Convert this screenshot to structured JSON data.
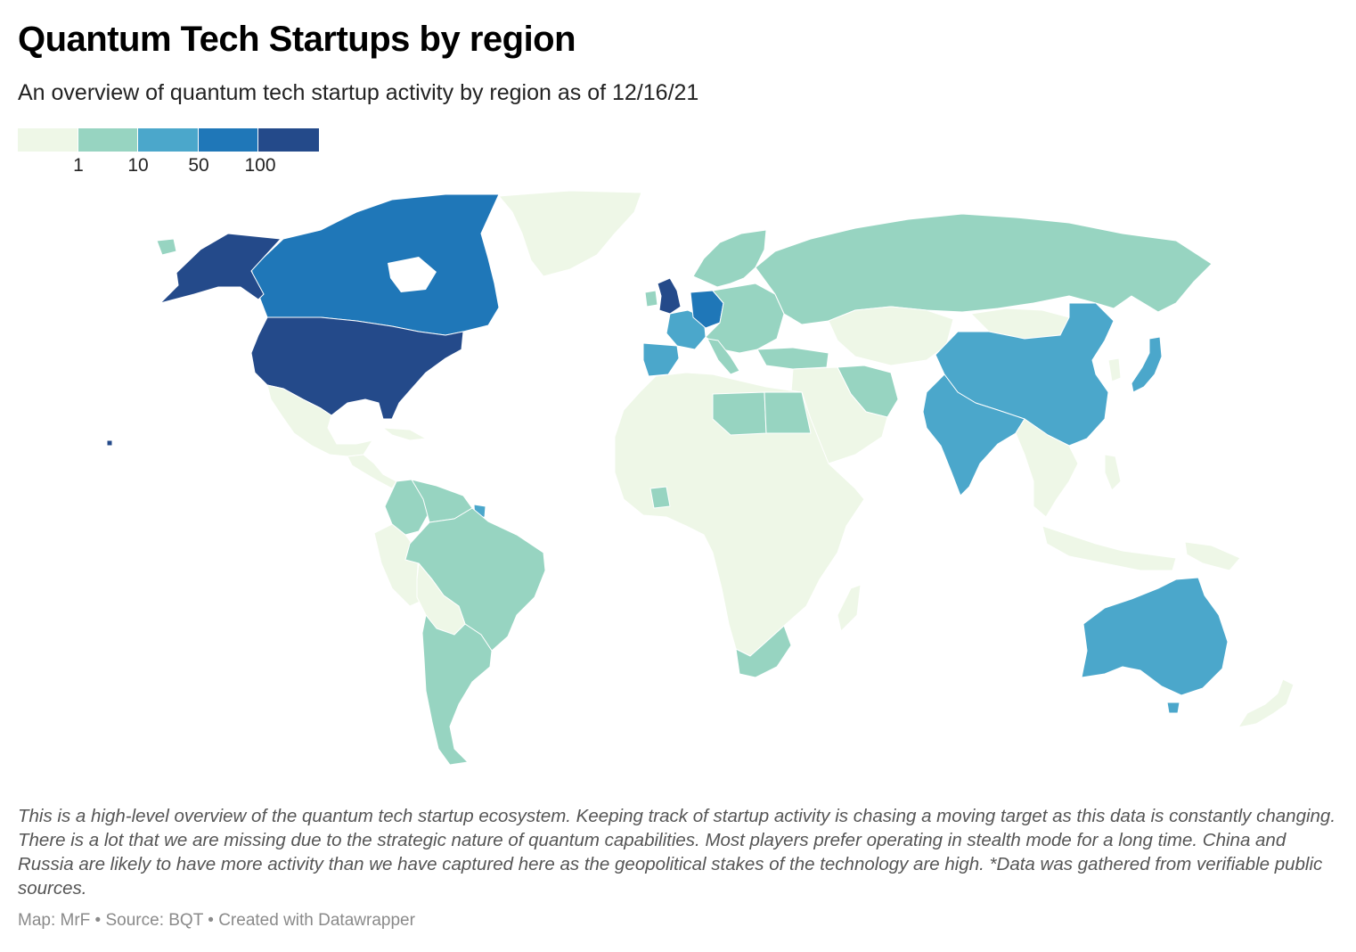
{
  "header": {
    "title": "Quantum Tech Startups by region",
    "subtitle": "An overview of quantum tech startup activity by region as of 12/16/21"
  },
  "legend": {
    "colors": [
      "#eef7e7",
      "#97d4c1",
      "#4ba7cb",
      "#1f77b8",
      "#244a8a"
    ],
    "ticks": [
      "1",
      "10",
      "50",
      "100"
    ]
  },
  "map": {
    "ocean_color": "#ffffff",
    "border_color": "#ffffff",
    "regions": [
      {
        "region": "United States",
        "bin": 4
      },
      {
        "region": "Alaska",
        "bin": 4
      },
      {
        "region": "United Kingdom",
        "bin": 4
      },
      {
        "region": "Canada",
        "bin": 3
      },
      {
        "region": "Germany",
        "bin": 3
      },
      {
        "region": "China",
        "bin": 2
      },
      {
        "region": "India",
        "bin": 2
      },
      {
        "region": "Japan",
        "bin": 2
      },
      {
        "region": "Australia",
        "bin": 2
      },
      {
        "region": "Spain",
        "bin": 2
      },
      {
        "region": "France",
        "bin": 2
      },
      {
        "region": "Russia",
        "bin": 1
      },
      {
        "region": "Brazil",
        "bin": 1
      },
      {
        "region": "Argentina",
        "bin": 1
      },
      {
        "region": "South Africa",
        "bin": 1
      },
      {
        "region": "Scandinavia",
        "bin": 1
      },
      {
        "region": "Iran",
        "bin": 1
      },
      {
        "region": "Egypt",
        "bin": 1
      },
      {
        "region": "Libya",
        "bin": 1
      },
      {
        "region": "Turkey",
        "bin": 1
      },
      {
        "region": "Colombia",
        "bin": 1
      },
      {
        "region": "Venezuela",
        "bin": 1
      },
      {
        "region": "Central Europe",
        "bin": 1
      },
      {
        "region": "Ivory Coast",
        "bin": 1
      },
      {
        "region": "Greenland",
        "bin": 0
      },
      {
        "region": "Mexico",
        "bin": 0
      },
      {
        "region": "Central America",
        "bin": 0
      },
      {
        "region": "Peru",
        "bin": 0
      },
      {
        "region": "Bolivia",
        "bin": 0
      },
      {
        "region": "Africa",
        "bin": 0
      },
      {
        "region": "Madagascar",
        "bin": 0
      },
      {
        "region": "Arabian Peninsula",
        "bin": 0
      },
      {
        "region": "Central Asia",
        "bin": 0
      },
      {
        "region": "Mongolia",
        "bin": 0
      },
      {
        "region": "Southeast Asia",
        "bin": 0
      },
      {
        "region": "Indonesia",
        "bin": 0
      },
      {
        "region": "Papua New Guinea",
        "bin": 0
      },
      {
        "region": "New Zealand",
        "bin": 0
      }
    ]
  },
  "notes": "This is a high-level overview of the quantum tech startup ecosystem. Keeping track of startup activity is chasing a moving target as this data is constantly changing. There is a lot that we are missing due to the strategic nature of quantum capabilities. Most players prefer operating in stealth mode for a long time. China and Russia are likely to have more activity than we have captured here as the geopolitical stakes of the technology are high. *Data was gathered from verifiable public sources.",
  "byline": {
    "map": "Map: MrF",
    "source": "Source: BQT",
    "tool": "Created with Datawrapper",
    "separator": " • "
  }
}
